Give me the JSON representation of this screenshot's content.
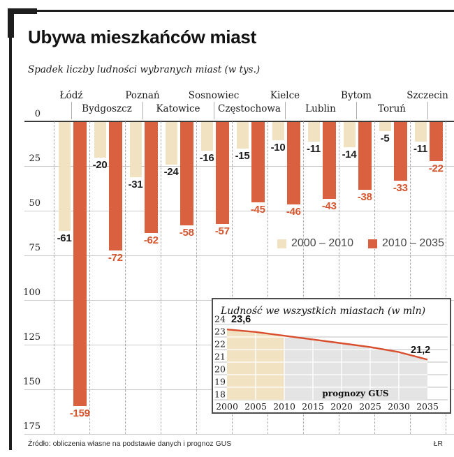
{
  "header": {
    "title": "Ubywa mieszkańców miast",
    "subtitle": "Spadek liczby ludności wybranych miast (w tys.)"
  },
  "colors": {
    "beige": "#f1e3c1",
    "orange_bar": "#d96140",
    "orange_label": "#d6552e",
    "dark_label": "#1d1d1d",
    "red_line": "#d94e2c",
    "forecast_gray": "#e4e4e4"
  },
  "chart_data": [
    {
      "type": "bar",
      "title": "Spadek liczby ludności wybranych miast (w tys.)",
      "categories": [
        "Łódź",
        "Bydgoszcz",
        "Poznań",
        "Katowice",
        "Sosnowiec",
        "Częstochowa",
        "Kielce",
        "Lublin",
        "Bytom",
        "Toruń",
        "Szczecin"
      ],
      "series": [
        {
          "name": "2000 – 2010",
          "color": "#f1e3c1",
          "values": [
            -61,
            -20,
            -31,
            -24,
            -16,
            -15,
            -10,
            -11,
            -14,
            -5,
            -11
          ]
        },
        {
          "name": "2010 – 2035",
          "color": "#d96140",
          "values": [
            -159,
            -72,
            -62,
            -58,
            -57,
            -45,
            -46,
            -43,
            -38,
            -33,
            -22
          ]
        }
      ],
      "ylim": [
        -175,
        0
      ],
      "y_ticks": [
        0,
        25,
        50,
        75,
        100,
        125,
        150,
        175
      ],
      "grid": true,
      "legend_position": "middle-right"
    },
    {
      "type": "area",
      "title": "Ludność we wszystkich miastach (w mln)",
      "x": [
        2000,
        2005,
        2010,
        2015,
        2020,
        2025,
        2030,
        2035
      ],
      "values": [
        23.6,
        23.4,
        23.1,
        22.8,
        22.5,
        22.2,
        21.8,
        21.2
      ],
      "ylim": [
        18,
        24
      ],
      "y_ticks": [
        24,
        23,
        22,
        21,
        20,
        19,
        18
      ],
      "line_color": "#d94e2c",
      "regions": [
        {
          "from": 2000,
          "to": 2010,
          "color": "#f1e3c1"
        },
        {
          "from": 2010,
          "to": 2035,
          "color": "#e4e4e4"
        }
      ],
      "annotations": {
        "start_label": "23,6",
        "end_label": "21,2",
        "note": "prognozy GUS"
      }
    }
  ],
  "footer": {
    "source": "Źródło: obliczenia własne na podstawie danych i prognoz GUS",
    "credit": "ŁR"
  }
}
